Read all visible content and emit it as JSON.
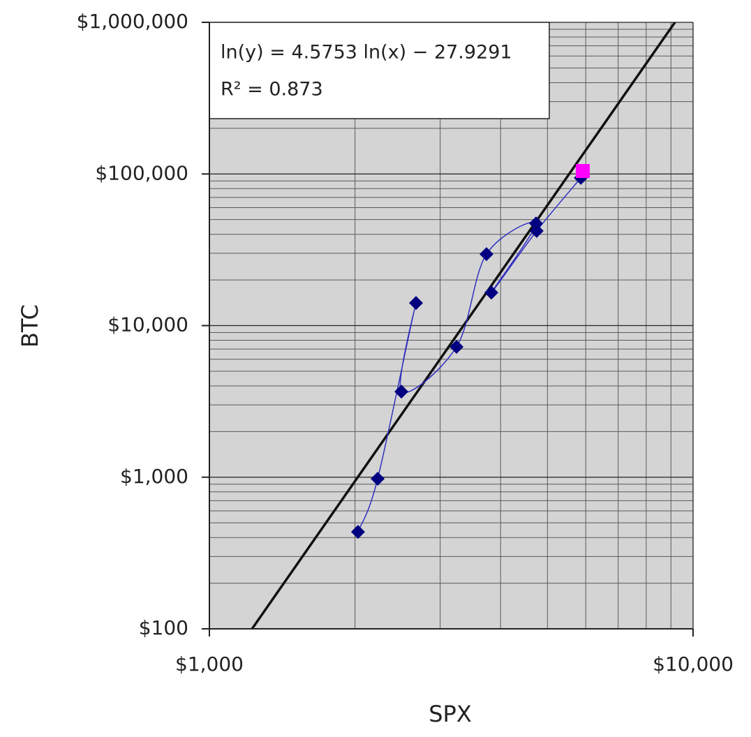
{
  "chart_data": {
    "type": "scatter",
    "x_label": "SPX",
    "y_label": "BTC",
    "log_x": true,
    "log_y": true,
    "grid": true,
    "xlim": [
      1000,
      10000
    ],
    "ylim": [
      100,
      1000000
    ],
    "xticks": [
      {
        "value": 1000,
        "label": "$1,000"
      },
      {
        "value": 10000,
        "label": "$10,000"
      }
    ],
    "yticks": [
      {
        "value": 100,
        "label": "$100"
      },
      {
        "value": 1000,
        "label": "$1,000"
      },
      {
        "value": 10000,
        "label": "$10,000"
      },
      {
        "value": 100000,
        "label": "$100,000"
      },
      {
        "value": 1000000,
        "label": "$1,000,000"
      }
    ],
    "series": [
      {
        "color": "#000080",
        "line_color": "#3030c0",
        "marker": "diamond",
        "smooth": true,
        "x": [
          2029,
          2228,
          2674,
          2494,
          3243,
          3740,
          4735,
          3828,
          4750,
          5860
        ],
        "values": [
          436,
          977,
          14100,
          3670,
          7240,
          29600,
          47200,
          16500,
          42100,
          94200
        ]
      },
      {
        "color": "#ff00ff",
        "marker": "square",
        "x": [
          5915
        ],
        "values": [
          104600
        ]
      }
    ],
    "trendline": {
      "slope": 4.5753,
      "intercept": -27.9291,
      "color": "#111111"
    },
    "annotation": {
      "lines": [
        "ln(y) = 4.5753 ln(x) − 27.9291",
        "R² = 0.873"
      ]
    }
  }
}
